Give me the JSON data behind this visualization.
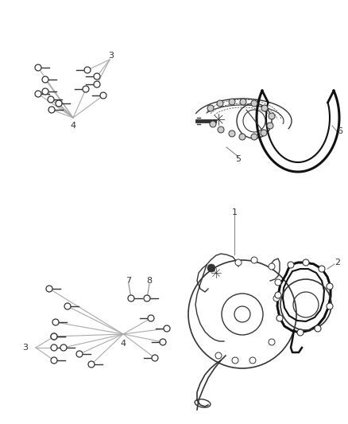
{
  "bg_color": "#ffffff",
  "lc": "#333333",
  "fc": "#333333",
  "fs": 8,
  "fig_w": 4.38,
  "fig_h": 5.33,
  "dpi": 100
}
